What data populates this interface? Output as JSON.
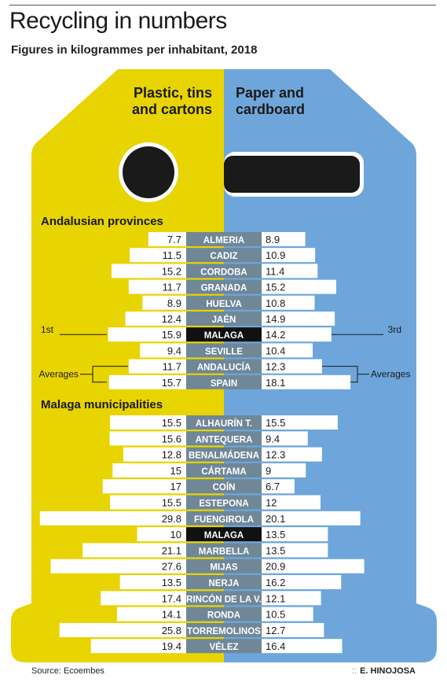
{
  "title": "Recycling in numbers",
  "subtitle": "Figures in kilogrammes per inhabitant, 2018",
  "source": "Source: Ecoembes",
  "credit": "E. HINOJOSA",
  "colors": {
    "left": "#e8d400",
    "right": "#6ea6db",
    "center": "#6f8797",
    "highlight": "#111111",
    "bar": "#ffffff"
  },
  "chart_data": {
    "type": "bar",
    "left_header": [
      "Plastic, tins",
      "and cartons"
    ],
    "right_header": [
      "Paper and",
      "cardboard"
    ],
    "left_series": "Plastic, tins and cartons",
    "right_series": "Paper and cardboard",
    "xlim": [
      0,
      30
    ],
    "groups": [
      {
        "title": "Andalusian provinces",
        "rows": [
          {
            "name": "ALMERIA",
            "left": 7.7,
            "right": 8.9
          },
          {
            "name": "CADIZ",
            "left": 11.5,
            "right": 10.9
          },
          {
            "name": "CORDOBA",
            "left": 15.2,
            "right": 11.4
          },
          {
            "name": "GRANADA",
            "left": 11.7,
            "right": 15.2
          },
          {
            "name": "HUELVA",
            "left": 8.9,
            "right": 10.8
          },
          {
            "name": "JAÉN",
            "left": 12.4,
            "right": 14.9
          },
          {
            "name": "MALAGA",
            "left": 15.9,
            "right": 14.2,
            "highlight": true
          },
          {
            "name": "SEVILLE",
            "left": 9.4,
            "right": 10.4
          },
          {
            "name": "ANDALUCÍA",
            "left": 11.7,
            "right": 12.3
          },
          {
            "name": "SPAIN",
            "left": 15.7,
            "right": 18.1
          }
        ]
      },
      {
        "title": "Malaga municipalities",
        "rows": [
          {
            "name": "ALHAURÍN T.",
            "left": 15.5,
            "right": 15.5
          },
          {
            "name": "ANTEQUERA",
            "left": 15.6,
            "right": 9.4
          },
          {
            "name": "BENALMÁDENA",
            "left": 12.8,
            "right": 12.3
          },
          {
            "name": "CÁRTAMA",
            "left": 15,
            "right": 9
          },
          {
            "name": "COÍN",
            "left": 17,
            "right": 6.7
          },
          {
            "name": "ESTEPONA",
            "left": 15.5,
            "right": 12
          },
          {
            "name": "FUENGIROLA",
            "left": 29.8,
            "right": 20.1
          },
          {
            "name": "MALAGA",
            "left": 10,
            "right": 13.5,
            "highlight": true
          },
          {
            "name": "MARBELLA",
            "left": 21.1,
            "right": 13.5
          },
          {
            "name": "MIJAS",
            "left": 27.6,
            "right": 20.9
          },
          {
            "name": "NERJA",
            "left": 13.5,
            "right": 16.2
          },
          {
            "name": "RINCÓN DE LA V.",
            "left": 17.4,
            "right": 12.1
          },
          {
            "name": "RONDA",
            "left": 14.1,
            "right": 10.5
          },
          {
            "name": "TORREMOLINOS",
            "left": 25.8,
            "right": 12.7
          },
          {
            "name": "VÉLEZ",
            "left": 19.4,
            "right": 16.4
          }
        ]
      }
    ],
    "annotations": {
      "rank_left": "1st",
      "rank_right": "3rd",
      "averages_left": "Averages",
      "averages_right": "Averages"
    }
  }
}
